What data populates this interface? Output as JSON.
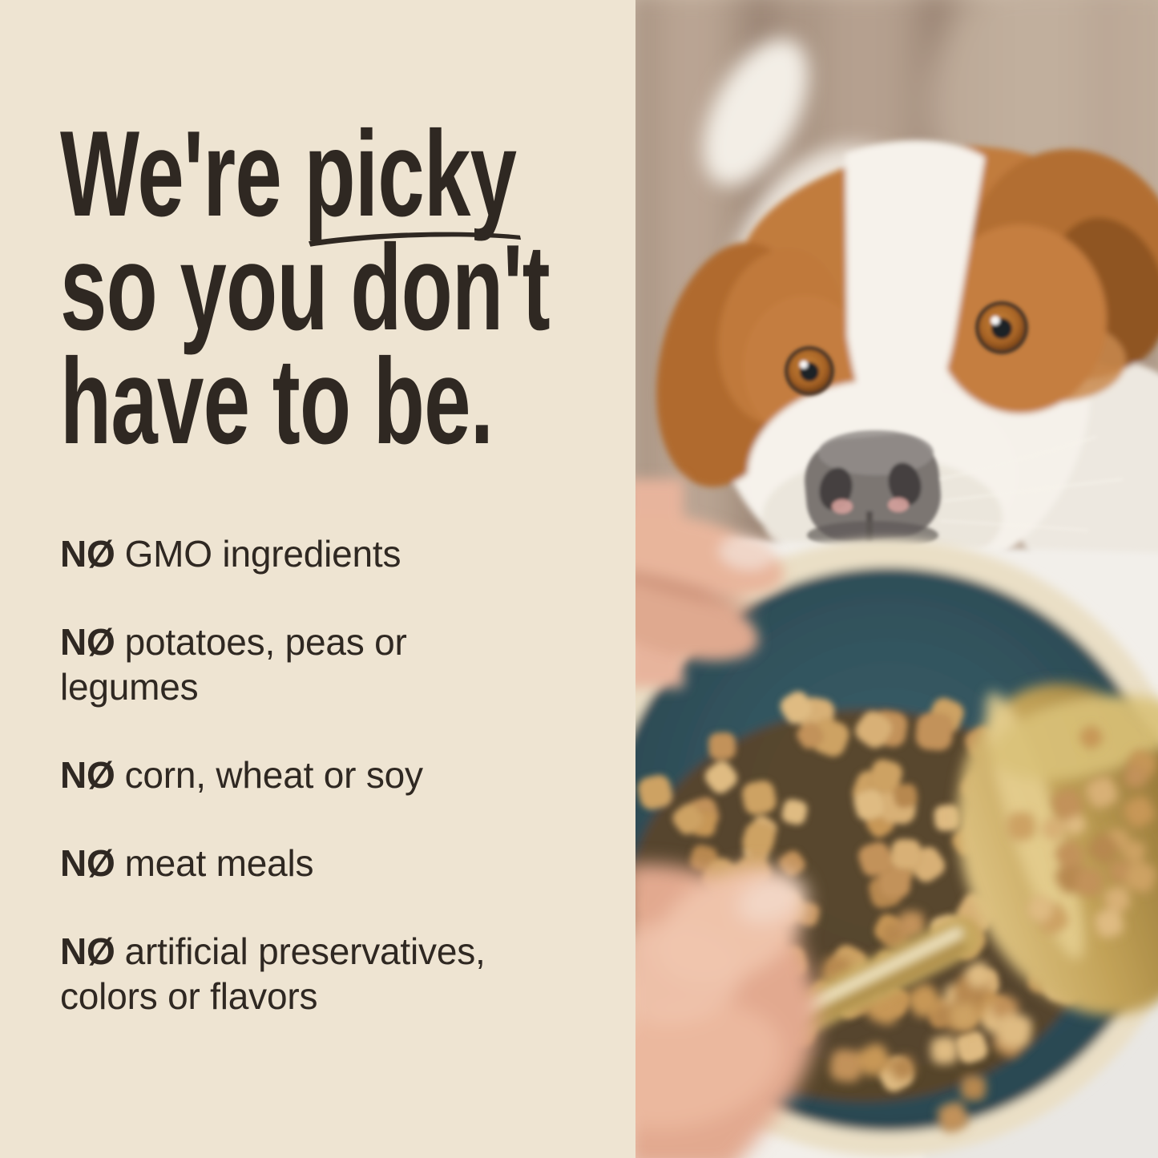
{
  "colors": {
    "background": "#EEE4D2",
    "ink": "#2F2822",
    "wood_taupe": "#AB9685",
    "dog_brown": "#C17B3D",
    "dog_white": "#F5F1EA",
    "table_white": "#F2EFEA",
    "bowl_teal": "#35525C",
    "bowl_rim_cream": "#EADFC6",
    "kibble_tan": "#C89E63",
    "scoop_gold": "#C2A257",
    "skin": "#E8B299"
  },
  "headline": {
    "line1_pre": "We're ",
    "line1_underlined": "picky",
    "line2": "so you don't",
    "line3": "have to be."
  },
  "bullets": {
    "items": [
      {
        "no": "NØ",
        "text": "GMO ingredients"
      },
      {
        "no": "NØ",
        "text": "potatoes, peas or legumes"
      },
      {
        "no": "NØ",
        "text": "corn, wheat or soy"
      },
      {
        "no": "NØ",
        "text": "meat meals"
      },
      {
        "no": "NØ",
        "text": "artificial preservatives, colors or flavors"
      }
    ]
  },
  "photo": {
    "description": "Close-up photo of a brown-and-white dog peeking over a white table at a teal bowl full of tan kibble while a hand pours kibble from a gold scoop"
  }
}
